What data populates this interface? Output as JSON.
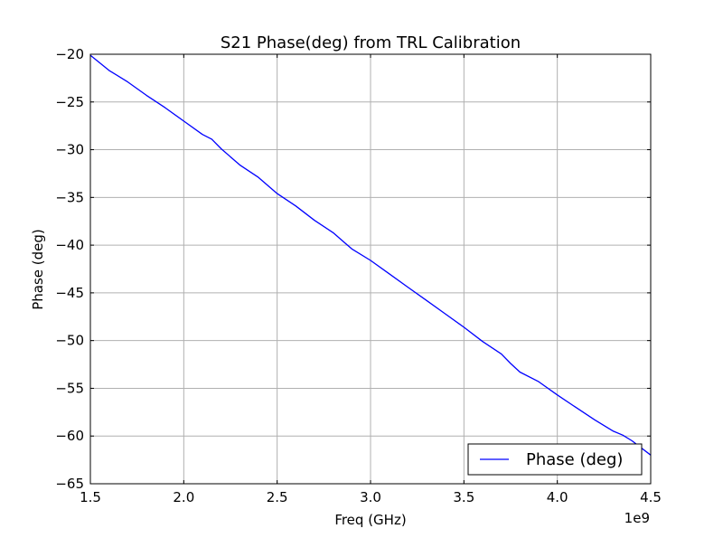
{
  "chart_data": {
    "type": "line",
    "title": "S21 Phase(deg) from TRL Calibration",
    "xlabel": "Freq (GHz)",
    "ylabel": "Phase (deg)",
    "x_offset_label": "1e9",
    "xlim": [
      1.5,
      4.5
    ],
    "ylim": [
      -65,
      -20
    ],
    "x_ticks": [
      1.5,
      2.0,
      2.5,
      3.0,
      3.5,
      4.0,
      4.5
    ],
    "x_tick_labels": [
      "1.5",
      "2.0",
      "2.5",
      "3.0",
      "3.5",
      "4.0",
      "4.5"
    ],
    "y_ticks": [
      -65,
      -60,
      -55,
      -50,
      -45,
      -40,
      -35,
      -30,
      -25,
      -20
    ],
    "y_tick_labels": [
      "−65",
      "−60",
      "−55",
      "−50",
      "−45",
      "−40",
      "−35",
      "−30",
      "−25",
      "−20"
    ],
    "grid": true,
    "legend_position": "lower-right",
    "series": [
      {
        "name": "Phase (deg)",
        "color": "#0000ff",
        "x": [
          1.5,
          1.6,
          1.7,
          1.8,
          1.9,
          2.0,
          2.1,
          2.15,
          2.2,
          2.3,
          2.4,
          2.5,
          2.6,
          2.7,
          2.8,
          2.9,
          3.0,
          3.1,
          3.2,
          3.3,
          3.4,
          3.5,
          3.6,
          3.7,
          3.75,
          3.8,
          3.9,
          4.0,
          4.1,
          4.2,
          4.3,
          4.35,
          4.4,
          4.5
        ],
        "y": [
          -20.1,
          -21.7,
          -22.9,
          -24.3,
          -25.6,
          -27.0,
          -28.4,
          -28.9,
          -29.9,
          -31.6,
          -32.9,
          -34.6,
          -35.9,
          -37.4,
          -38.7,
          -40.4,
          -41.6,
          -43.0,
          -44.4,
          -45.8,
          -47.2,
          -48.6,
          -50.1,
          -51.4,
          -52.4,
          -53.3,
          -54.3,
          -55.7,
          -57.0,
          -58.3,
          -59.5,
          -59.9,
          -60.5,
          -62.0
        ]
      }
    ]
  }
}
